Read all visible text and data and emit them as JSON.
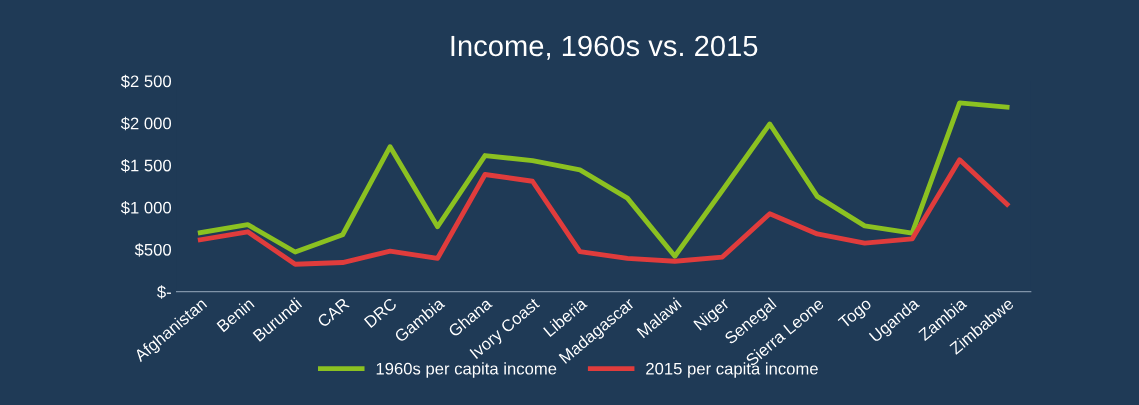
{
  "chart_data": {
    "type": "line",
    "title": "Income, 1960s vs. 2015",
    "categories": [
      "Afghanistan",
      "Benin",
      "Burundi",
      "CAR",
      "DRC",
      "Gambia",
      "Ghana",
      "Ivory Coast",
      "Liberia",
      "Madagascar",
      "Malawi",
      "Niger",
      "Senegal",
      "Sierra Leone",
      "Togo",
      "Uganda",
      "Zambia",
      "Zimbabwe"
    ],
    "series": [
      {
        "name": "1960s per capita income",
        "color": "#8bc121",
        "values": [
          700,
          795,
          470,
          675,
          1720,
          770,
          1615,
          1555,
          1445,
          1110,
          420,
          1200,
          1990,
          1130,
          780,
          695,
          2240,
          2190
        ]
      },
      {
        "name": "2015 per capita income",
        "color": "#e03c3c",
        "values": [
          615,
          710,
          325,
          345,
          480,
          395,
          1390,
          1310,
          475,
          395,
          360,
          410,
          925,
          685,
          575,
          625,
          1565,
          1035
        ]
      }
    ],
    "ylim": [
      0,
      2500
    ],
    "yticks": [
      {
        "value": 0,
        "label": "$-"
      },
      {
        "value": 500,
        "label": "$500"
      },
      {
        "value": 1000,
        "label": "$1 000"
      },
      {
        "value": 1500,
        "label": "$1 500"
      },
      {
        "value": 2000,
        "label": "$2 000"
      },
      {
        "value": 2500,
        "label": "$2 500"
      }
    ],
    "grid": false,
    "legend": "bottom",
    "marker": "none",
    "line_style": "solid"
  }
}
